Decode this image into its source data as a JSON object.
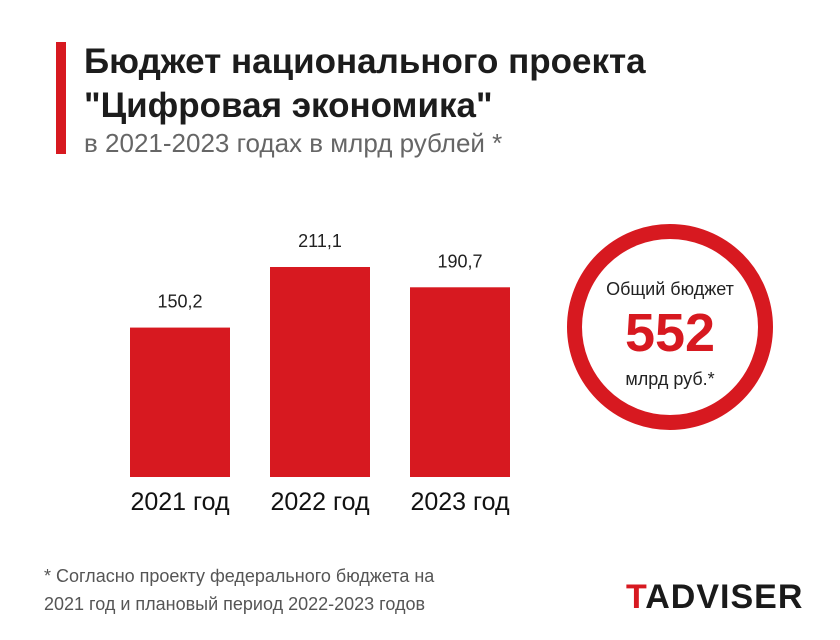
{
  "header": {
    "title_line1": "Бюджет национального проекта",
    "title_line2": "\"Цифровая экономика\"",
    "subtitle": "в 2021-2023 годах в млрд рублей *"
  },
  "chart_data": {
    "type": "bar",
    "categories": [
      "2021 год",
      "2022 год",
      "2023 год"
    ],
    "values": [
      150.2,
      211.1,
      190.7
    ],
    "value_labels": [
      "150,2",
      "211,1",
      "190,7"
    ],
    "title": "Бюджет национального проекта \"Цифровая экономика\"",
    "subtitle": "в 2021-2023 годах в млрд рублей *",
    "xlabel": "",
    "ylabel": "",
    "ylim": [
      0,
      211.1
    ],
    "grid": false,
    "bar_color": "#d71920"
  },
  "summary": {
    "caption": "Общий бюджет",
    "total": "552",
    "unit": "млрд руб.*",
    "ring_color": "#d71920"
  },
  "footnote": {
    "line1": "* Согласно проекту федерального бюджета на",
    "line2": "2021 год и плановый период 2022-2023 годов"
  },
  "logo": {
    "first_letter": "T",
    "rest": "ADVISER"
  }
}
